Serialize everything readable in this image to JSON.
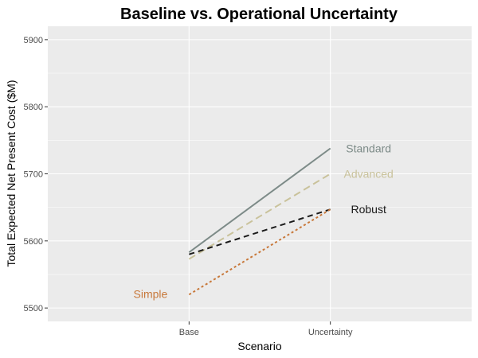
{
  "chart_data": {
    "type": "line",
    "title": "Baseline vs. Operational Uncertainty",
    "xlabel": "Scenario",
    "ylabel": "Total Expected Net Present Cost ($M)",
    "categories": [
      "Base",
      "Uncertainty"
    ],
    "ylim": [
      5480,
      5920
    ],
    "yticks": [
      "5500",
      "5600",
      "5700",
      "5800",
      "5900"
    ],
    "grid": true,
    "legend": "direct labels",
    "series": [
      {
        "name": "Standard",
        "values": [
          5583,
          5738
        ],
        "color": "#7d8b88",
        "dash": "solid",
        "label_side": "end"
      },
      {
        "name": "Advanced",
        "values": [
          5573,
          5700
        ],
        "color": "#c9c29b",
        "dash": "long-dash",
        "label_side": "end"
      },
      {
        "name": "Robust",
        "values": [
          5580,
          5647
        ],
        "color": "#1a1a1a",
        "dash": "dash",
        "label_side": "end"
      },
      {
        "name": "Simple",
        "values": [
          5520,
          5647
        ],
        "color": "#c8783a",
        "dash": "dotted",
        "label_side": "start"
      }
    ]
  }
}
